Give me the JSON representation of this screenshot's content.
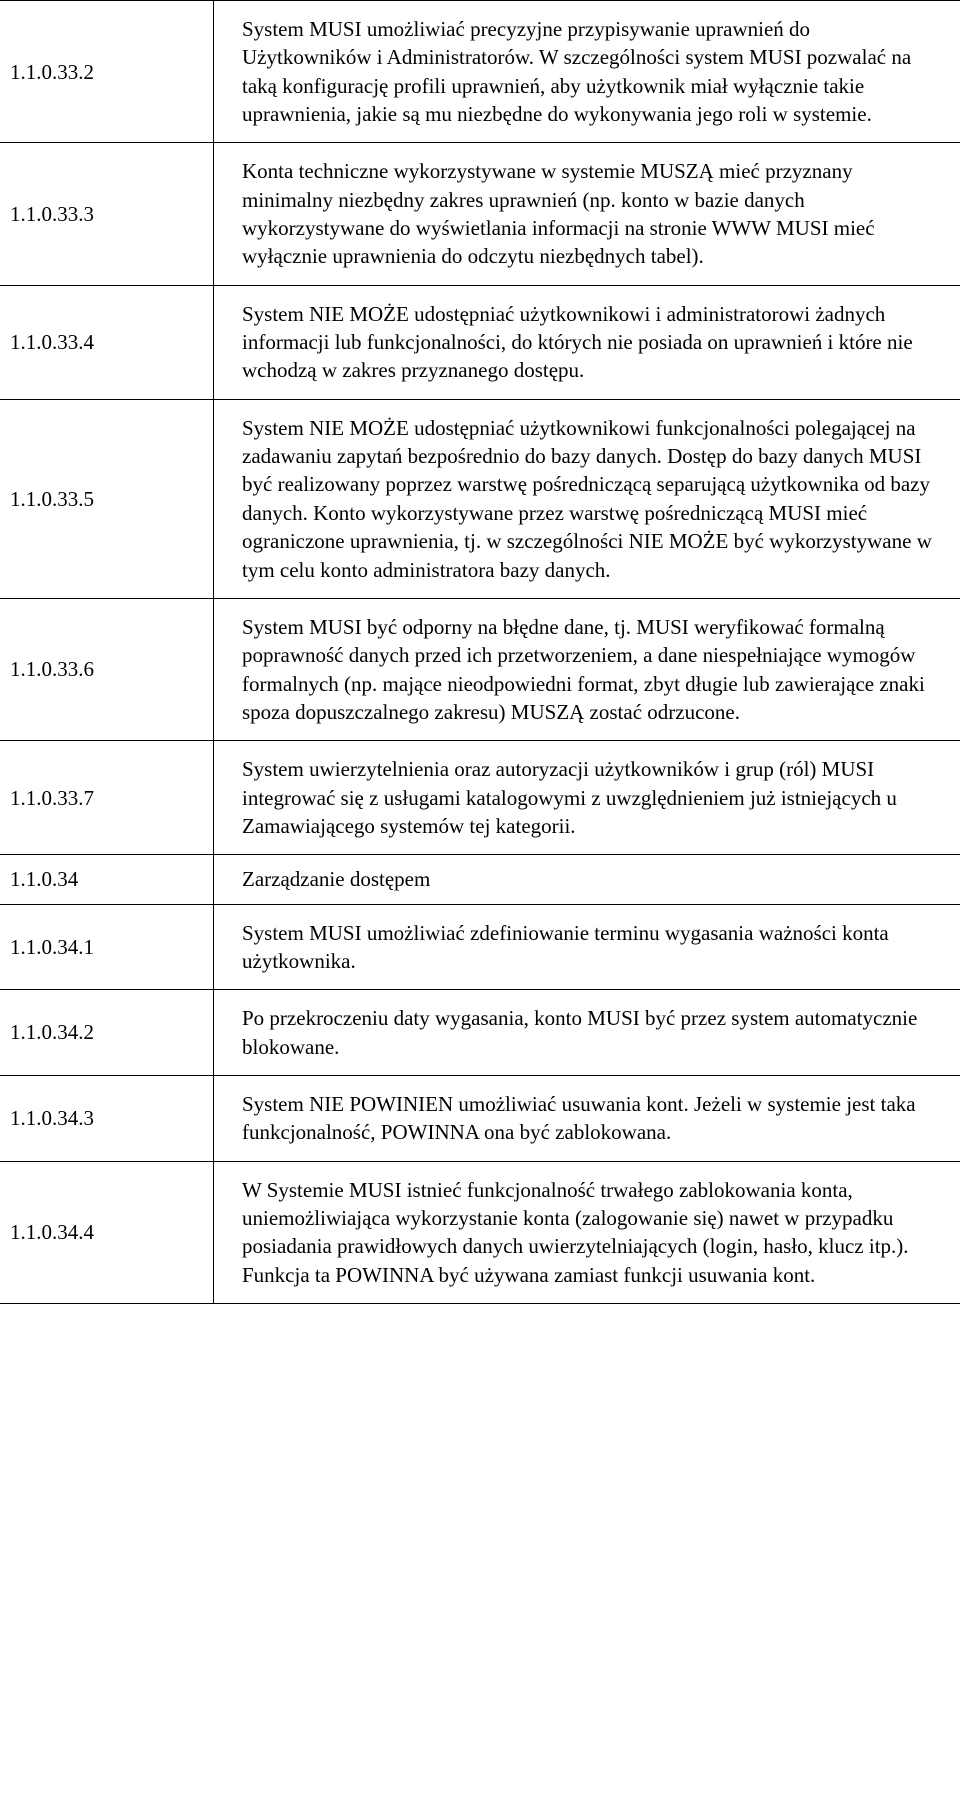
{
  "rows": [
    {
      "id": "1.1.0.33.2",
      "desc": "System MUSI umożliwiać precyzyjne przypisywanie uprawnień do Użytkowników i Administratorów. W szczególności system MUSI pozwalać na taką konfigurację profili uprawnień, aby użytkownik miał wyłącznie takie uprawnienia, jakie są mu niezbędne do wykonywania jego roli w systemie."
    },
    {
      "id": "1.1.0.33.3",
      "desc": "Konta techniczne wykorzystywane w systemie MUSZĄ mieć przyznany minimalny niezbędny zakres uprawnień (np. konto w bazie danych wykorzystywane do wyświetlania informacji na stronie WWW MUSI mieć wyłącznie uprawnienia do odczytu niezbędnych tabel)."
    },
    {
      "id": "1.1.0.33.4",
      "desc": "System NIE MOŻE udostępniać użytkownikowi i administratorowi żadnych informacji lub funkcjonalności, do których nie posiada on uprawnień i które nie wchodzą w zakres przyznanego dostępu."
    },
    {
      "id": "1.1.0.33.5",
      "desc": "System NIE MOŻE udostępniać użytkownikowi funkcjonalności polegającej na zadawaniu zapytań bezpośrednio do bazy danych. Dostęp do bazy danych MUSI być realizowany poprzez warstwę pośredniczącą separującą użytkownika od bazy danych. Konto wykorzystywane przez warstwę pośredniczącą MUSI mieć ograniczone uprawnienia, tj. w szczególności NIE MOŻE być wykorzystywane w tym celu konto administratora bazy danych."
    },
    {
      "id": "1.1.0.33.6",
      "desc": "System MUSI być odporny na błędne dane, tj. MUSI weryfikować formalną poprawność danych przed ich przetworzeniem, a dane niespełniające wymogów formalnych (np. mające nieodpowiedni format, zbyt długie lub zawierające znaki spoza dopuszczalnego zakresu) MUSZĄ zostać odrzucone."
    },
    {
      "id": "1.1.0.33.7",
      "desc": "System uwierzytelnienia oraz autoryzacji użytkowników i grup (ról) MUSI integrować się z usługami katalogowymi z uwzględnieniem już istniejących u Zamawiającego systemów tej kategorii."
    },
    {
      "id": "1.1.0.34",
      "desc": "Zarządzanie dostępem",
      "tight": true
    },
    {
      "id": "1.1.0.34.1",
      "desc": "System MUSI umożliwiać zdefiniowanie terminu wygasania ważności konta użytkownika."
    },
    {
      "id": "1.1.0.34.2",
      "desc": "Po przekroczeniu daty wygasania, konto MUSI być przez system automatycznie blokowane."
    },
    {
      "id": "1.1.0.34.3",
      "desc": "System NIE POWINIEN umożliwiać usuwania kont. Jeżeli w systemie jest taka funkcjonalność, POWINNA ona być zablokowana."
    },
    {
      "id": "1.1.0.34.4",
      "desc": "W Systemie MUSI istnieć funkcjonalność trwałego zablokowania konta, uniemożliwiająca wykorzystanie konta (zalogowanie się) nawet w przypadku posiadania prawidłowych danych uwierzytelniających (login, hasło, klucz itp.). Funkcja ta POWINNA być używana zamiast funkcji usuwania kont."
    }
  ]
}
